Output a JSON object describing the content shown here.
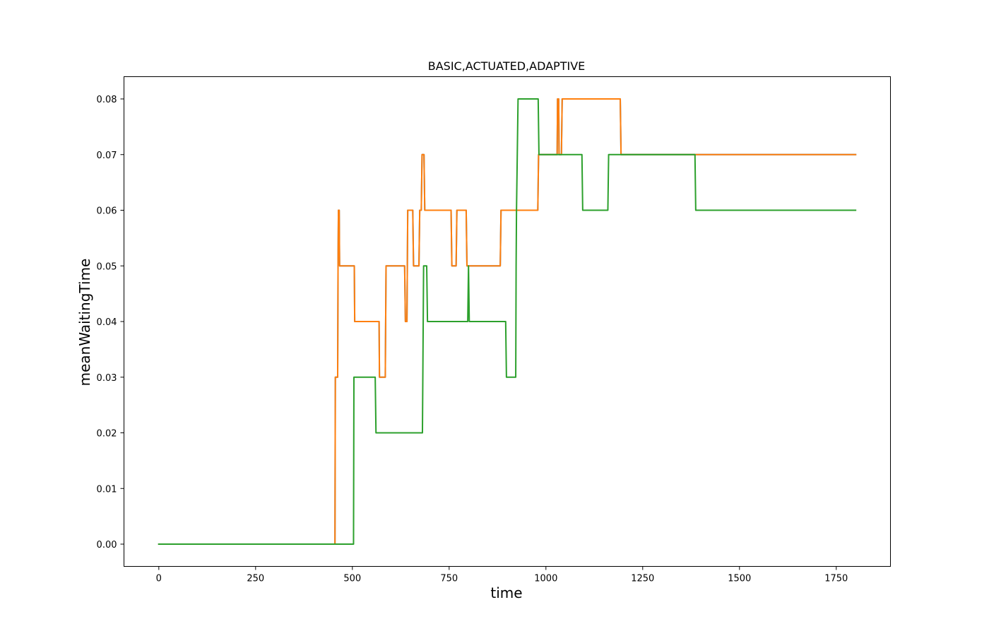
{
  "chart_data": {
    "type": "line",
    "title": "BASIC,ACTUATED,ADAPTIVE",
    "xlabel": "time",
    "ylabel": "meanWaitingTime",
    "xlim": [
      -90,
      1890
    ],
    "ylim": [
      -0.004,
      0.084
    ],
    "xticks": [
      0,
      250,
      500,
      750,
      1000,
      1250,
      1500,
      1750
    ],
    "yticks": [
      0.0,
      0.01,
      0.02,
      0.03,
      0.04,
      0.05,
      0.06,
      0.07,
      0.08
    ],
    "ytick_labels": [
      "0.00",
      "0.01",
      "0.02",
      "0.03",
      "0.04",
      "0.05",
      "0.06",
      "0.07",
      "0.08"
    ],
    "grid": false,
    "legend": "none",
    "series": [
      {
        "color": "#1f77b4",
        "points": [
          [
            0,
            0
          ],
          [
            455,
            0
          ],
          [
            456,
            0.03
          ],
          [
            462,
            0.03
          ],
          [
            463,
            0.05
          ],
          [
            464,
            0.06
          ],
          [
            466,
            0.06
          ],
          [
            467,
            0.05
          ],
          [
            505,
            0.05
          ],
          [
            506,
            0.04
          ],
          [
            569,
            0.04
          ],
          [
            570,
            0.03
          ],
          [
            585,
            0.03
          ],
          [
            587,
            0.05
          ],
          [
            635,
            0.05
          ],
          [
            637,
            0.04
          ],
          [
            641,
            0.04
          ],
          [
            643,
            0.06
          ],
          [
            656,
            0.06
          ],
          [
            658,
            0.05
          ],
          [
            672,
            0.05
          ],
          [
            674,
            0.06
          ],
          [
            678,
            0.06
          ],
          [
            680,
            0.07
          ],
          [
            685,
            0.07
          ],
          [
            687,
            0.06
          ],
          [
            755,
            0.06
          ],
          [
            757,
            0.05
          ],
          [
            768,
            0.05
          ],
          [
            770,
            0.06
          ],
          [
            794,
            0.06
          ],
          [
            796,
            0.05
          ],
          [
            882,
            0.05
          ],
          [
            884,
            0.06
          ],
          [
            979,
            0.06
          ],
          [
            981,
            0.07
          ],
          [
            1029,
            0.07
          ],
          [
            1030,
            0.08
          ],
          [
            1033,
            0.08
          ],
          [
            1034,
            0.07
          ],
          [
            1040,
            0.07
          ],
          [
            1042,
            0.08
          ],
          [
            1192,
            0.08
          ],
          [
            1194,
            0.07
          ],
          [
            1800,
            0.07
          ]
        ]
      },
      {
        "color": "#ff7f0e",
        "points": [
          [
            0,
            0
          ],
          [
            455,
            0
          ],
          [
            456,
            0.03
          ],
          [
            462,
            0.03
          ],
          [
            463,
            0.05
          ],
          [
            464,
            0.06
          ],
          [
            466,
            0.06
          ],
          [
            467,
            0.05
          ],
          [
            505,
            0.05
          ],
          [
            506,
            0.04
          ],
          [
            569,
            0.04
          ],
          [
            570,
            0.03
          ],
          [
            585,
            0.03
          ],
          [
            587,
            0.05
          ],
          [
            635,
            0.05
          ],
          [
            637,
            0.04
          ],
          [
            641,
            0.04
          ],
          [
            643,
            0.06
          ],
          [
            656,
            0.06
          ],
          [
            658,
            0.05
          ],
          [
            672,
            0.05
          ],
          [
            674,
            0.06
          ],
          [
            678,
            0.06
          ],
          [
            680,
            0.07
          ],
          [
            685,
            0.07
          ],
          [
            687,
            0.06
          ],
          [
            755,
            0.06
          ],
          [
            757,
            0.05
          ],
          [
            768,
            0.05
          ],
          [
            770,
            0.06
          ],
          [
            794,
            0.06
          ],
          [
            796,
            0.05
          ],
          [
            882,
            0.05
          ],
          [
            884,
            0.06
          ],
          [
            979,
            0.06
          ],
          [
            981,
            0.07
          ],
          [
            1029,
            0.07
          ],
          [
            1030,
            0.08
          ],
          [
            1033,
            0.08
          ],
          [
            1034,
            0.07
          ],
          [
            1040,
            0.07
          ],
          [
            1042,
            0.08
          ],
          [
            1192,
            0.08
          ],
          [
            1194,
            0.07
          ],
          [
            1800,
            0.07
          ]
        ]
      },
      {
        "color": "#2ca02c",
        "points": [
          [
            0,
            0
          ],
          [
            503,
            0
          ],
          [
            504,
            0.03
          ],
          [
            559,
            0.03
          ],
          [
            561,
            0.02
          ],
          [
            681,
            0.02
          ],
          [
            682,
            0.03
          ],
          [
            684,
            0.05
          ],
          [
            692,
            0.05
          ],
          [
            694,
            0.04
          ],
          [
            798,
            0.04
          ],
          [
            800,
            0.05
          ],
          [
            802,
            0.04
          ],
          [
            896,
            0.04
          ],
          [
            898,
            0.03
          ],
          [
            922,
            0.03
          ],
          [
            923,
            0.05
          ],
          [
            924,
            0.06
          ],
          [
            926,
            0.07
          ],
          [
            928,
            0.08
          ],
          [
            980,
            0.08
          ],
          [
            982,
            0.07
          ],
          [
            1093,
            0.07
          ],
          [
            1095,
            0.06
          ],
          [
            1160,
            0.06
          ],
          [
            1162,
            0.07
          ],
          [
            1385,
            0.07
          ],
          [
            1387,
            0.06
          ],
          [
            1800,
            0.06
          ]
        ]
      }
    ]
  }
}
